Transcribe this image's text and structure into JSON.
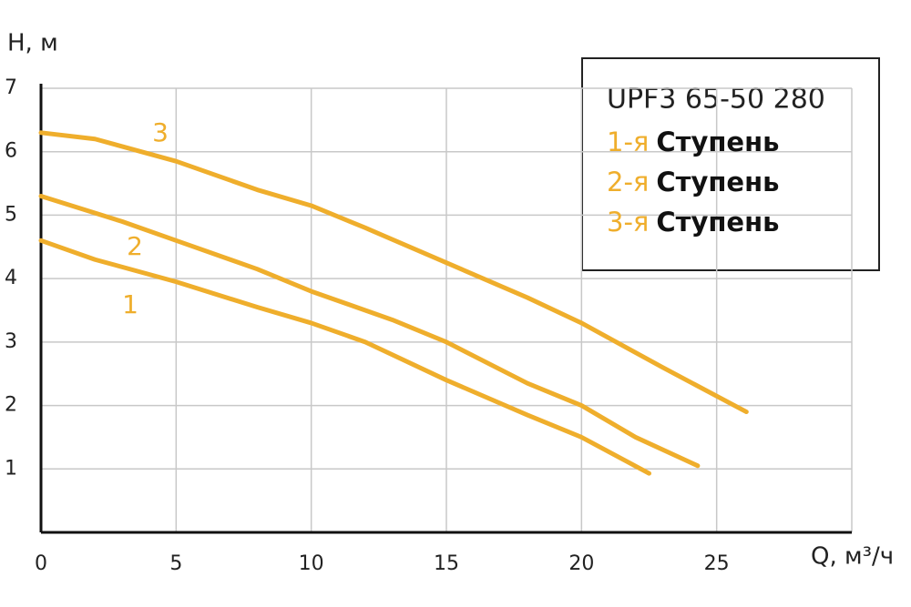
{
  "chart_data": {
    "type": "line",
    "xlabel": "Q, м³/ч",
    "ylabel": "H, м",
    "xlim": [
      0,
      30
    ],
    "xticks": [
      0,
      5,
      10,
      15,
      20,
      25
    ],
    "ylim": [
      0,
      7
    ],
    "yticks": [
      1,
      2,
      3,
      4,
      5,
      6,
      7
    ],
    "grid": true,
    "series": [
      {
        "name": "1",
        "color": "#efae2c",
        "x": [
          0,
          2,
          5,
          8,
          10,
          12,
          15,
          18,
          20,
          22.5
        ],
        "values": [
          4.6,
          4.3,
          3.95,
          3.55,
          3.3,
          3.0,
          2.4,
          1.85,
          1.5,
          0.93
        ]
      },
      {
        "name": "2",
        "color": "#efae2c",
        "x": [
          0,
          3,
          5,
          8,
          10,
          13,
          15,
          18,
          20,
          22,
          24.3
        ],
        "values": [
          5.3,
          4.9,
          4.6,
          4.15,
          3.8,
          3.35,
          3.0,
          2.35,
          2.0,
          1.5,
          1.05
        ]
      },
      {
        "name": "3",
        "color": "#efae2c",
        "x": [
          0,
          2,
          5,
          8,
          10,
          12,
          15,
          18,
          20,
          23,
          26.1
        ],
        "values": [
          6.3,
          6.2,
          5.85,
          5.4,
          5.15,
          4.8,
          4.25,
          3.7,
          3.3,
          2.6,
          1.9
        ]
      }
    ],
    "legend": {
      "title": "UPF3 65-50 280",
      "entries": [
        {
          "prefix": "1-я",
          "text": "Ступень"
        },
        {
          "prefix": "2-я",
          "text": "Ступень"
        },
        {
          "prefix": "3-я",
          "text": "Ступень"
        }
      ]
    }
  }
}
